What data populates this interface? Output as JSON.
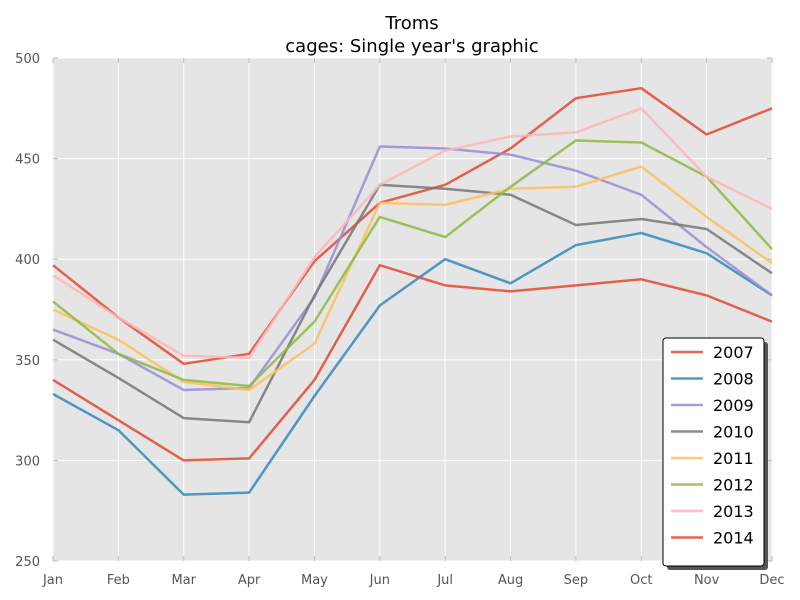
{
  "chart_data": {
    "type": "line",
    "title": "Troms",
    "subtitle": "cages: Single year's graphic",
    "xlabel": "",
    "ylabel": "",
    "categories": [
      "Jan",
      "Feb",
      "Mar",
      "Apr",
      "May",
      "Jun",
      "Jul",
      "Aug",
      "Sep",
      "Oct",
      "Nov",
      "Dec"
    ],
    "ylim": [
      250,
      500
    ],
    "yticks": [
      250,
      300,
      350,
      400,
      450,
      500
    ],
    "grid": true,
    "legend_position": "bottom-right",
    "series": [
      {
        "name": "2007",
        "color": "#E24A33",
        "values": [
          397,
          371,
          348,
          353,
          399,
          428,
          437,
          455,
          480,
          485,
          462,
          475
        ]
      },
      {
        "name": "2008",
        "color": "#348ABD",
        "values": [
          333,
          315,
          283,
          284,
          332,
          377,
          400,
          388,
          407,
          413,
          403,
          382
        ]
      },
      {
        "name": "2009",
        "color": "#988ED5",
        "values": [
          365,
          353,
          335,
          336,
          381,
          456,
          455,
          452,
          444,
          432,
          406,
          382
        ]
      },
      {
        "name": "2010",
        "color": "#777777",
        "values": [
          360,
          341,
          321,
          319,
          382,
          437,
          435,
          432,
          417,
          420,
          415,
          393
        ]
      },
      {
        "name": "2011",
        "color": "#FBC15E",
        "values": [
          375,
          360,
          339,
          335,
          358,
          428,
          427,
          435,
          436,
          446,
          421,
          398
        ]
      },
      {
        "name": "2012",
        "color": "#8EBA42",
        "values": [
          379,
          353,
          340,
          337,
          369,
          421,
          411,
          436,
          459,
          458,
          441,
          405
        ]
      },
      {
        "name": "2013",
        "color": "#FFB5B8",
        "values": [
          392,
          371,
          352,
          351,
          401,
          437,
          454,
          461,
          463,
          475,
          441,
          425
        ]
      },
      {
        "name": "2014",
        "color": "#E24A33",
        "values": [
          340,
          320,
          300,
          301,
          340,
          397,
          387,
          384,
          387,
          390,
          382,
          369
        ]
      }
    ]
  }
}
